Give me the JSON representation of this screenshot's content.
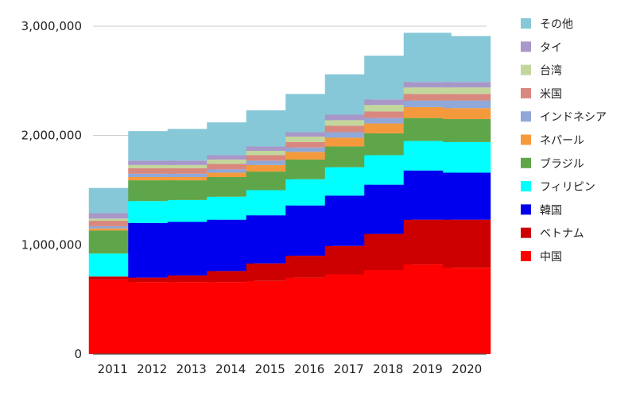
{
  "chart_data": {
    "type": "bar",
    "stacked": true,
    "title": "",
    "xlabel": "",
    "ylabel": "",
    "ylim": [
      0,
      3000000
    ],
    "y_ticks": [
      0,
      1000000,
      2000000,
      3000000
    ],
    "y_tick_labels": [
      "0",
      "1,000,000",
      "2,000,000",
      "3,000,000"
    ],
    "grid": true,
    "legend_position": "right",
    "categories": [
      "2011",
      "2012",
      "2013",
      "2014",
      "2015",
      "2016",
      "2017",
      "2018",
      "2019",
      "2020"
    ],
    "series": [
      {
        "name": "中国",
        "color": "#ff0000",
        "values": [
          680000,
          660000,
          660000,
          660000,
          670000,
          700000,
          730000,
          770000,
          820000,
          790000
        ]
      },
      {
        "name": "ベトナム",
        "color": "#cc0000",
        "values": [
          30000,
          40000,
          60000,
          100000,
          160000,
          200000,
          260000,
          330000,
          410000,
          440000
        ]
      },
      {
        "name": "韓国",
        "color": "#0000ee",
        "values": [
          0,
          500000,
          490000,
          470000,
          440000,
          460000,
          460000,
          450000,
          450000,
          430000
        ]
      },
      {
        "name": "フィリピン",
        "color": "#00ffff",
        "values": [
          210000,
          200000,
          200000,
          210000,
          230000,
          240000,
          260000,
          270000,
          270000,
          280000
        ]
      },
      {
        "name": "ブラジル",
        "color": "#5fa64a",
        "values": [
          210000,
          190000,
          180000,
          180000,
          170000,
          180000,
          190000,
          200000,
          210000,
          210000
        ]
      },
      {
        "name": "ネパール",
        "color": "#f59a3c",
        "values": [
          20000,
          30000,
          30000,
          40000,
          60000,
          70000,
          80000,
          90000,
          100000,
          100000
        ]
      },
      {
        "name": "インドネシア",
        "color": "#8fa8d8",
        "values": [
          20000,
          30000,
          30000,
          30000,
          40000,
          40000,
          50000,
          50000,
          60000,
          70000
        ]
      },
      {
        "name": "米国",
        "color": "#d98880",
        "values": [
          50000,
          50000,
          50000,
          50000,
          50000,
          50000,
          60000,
          60000,
          60000,
          60000
        ]
      },
      {
        "name": "台湾",
        "color": "#c3d69b",
        "values": [
          20000,
          30000,
          30000,
          40000,
          40000,
          50000,
          50000,
          60000,
          60000,
          60000
        ]
      },
      {
        "name": "タイ",
        "color": "#a897c8",
        "values": [
          50000,
          40000,
          40000,
          40000,
          40000,
          40000,
          50000,
          50000,
          50000,
          50000
        ]
      },
      {
        "name": "その他",
        "color": "#86c8d8",
        "values": [
          230000,
          270000,
          290000,
          300000,
          330000,
          350000,
          370000,
          400000,
          450000,
          420000
        ]
      }
    ]
  }
}
